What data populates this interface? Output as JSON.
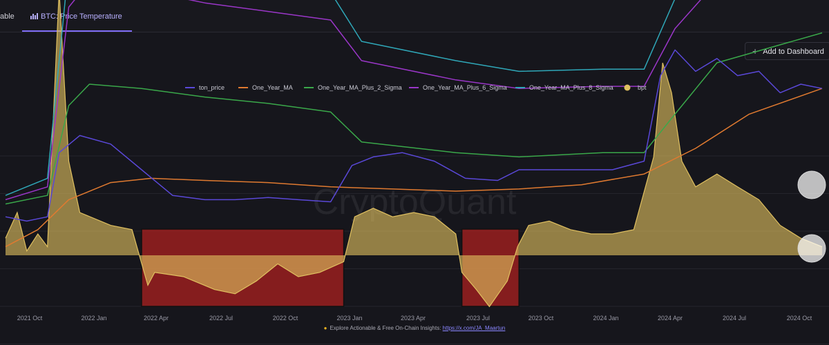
{
  "tabs": [
    {
      "label": "able"
    },
    {
      "label": "BTC: Price Temperature"
    }
  ],
  "add_dashboard_label": "Add to Dashboard",
  "watermark": "CryptoQuant",
  "footer": {
    "text": "Explore Actionable & Free On-Chain Insights:",
    "link": "https://x.com/JA_Maartun"
  },
  "chart_data": {
    "type": "line",
    "title": "",
    "xlabel": "",
    "ylabel": "",
    "x_ticks": [
      "2021 Oct",
      "2022 Jan",
      "2022 Apr",
      "2022 Jul",
      "2022 Oct",
      "2023 Jan",
      "2023 Apr",
      "2023 Jul",
      "2023 Oct",
      "2024 Jan",
      "2024 Apr",
      "2024 Jul",
      "2024 Oct"
    ],
    "x_range": [
      "2021-08-15",
      "2024-11-15"
    ],
    "legend_position": "top-center",
    "grid": "horizontal",
    "series": [
      {
        "name": "ton_price",
        "color": "#5a48d8",
        "dates": [
          "2021-08-15",
          "2021-09-15",
          "2021-10-15",
          "2021-11-01",
          "2021-12-01",
          "2022-01-15",
          "2022-03-01",
          "2022-04-15",
          "2022-06-01",
          "2022-07-15",
          "2022-09-01",
          "2022-10-15",
          "2022-12-01",
          "2023-01-01",
          "2023-02-01",
          "2023-03-15",
          "2023-05-01",
          "2023-06-15",
          "2023-08-01",
          "2023-09-01",
          "2023-10-15",
          "2023-12-01",
          "2024-01-15",
          "2024-03-01",
          "2024-03-25",
          "2024-04-15",
          "2024-05-15",
          "2024-06-15",
          "2024-07-15",
          "2024-08-15",
          "2024-09-15",
          "2024-10-15",
          "2024-11-15"
        ],
        "values": [
          0.9,
          0.8,
          0.9,
          2.4,
          2.8,
          2.6,
          2.0,
          1.4,
          1.3,
          1.3,
          1.35,
          1.3,
          1.25,
          2.1,
          2.3,
          2.4,
          2.2,
          1.8,
          1.75,
          2.0,
          2.0,
          2.0,
          2.0,
          2.2,
          4.2,
          4.8,
          4.3,
          4.6,
          4.2,
          4.3,
          3.8,
          4.0,
          3.9
        ]
      },
      {
        "name": "One_Year_MA",
        "color": "#e07a30",
        "dates": [
          "2021-08-15",
          "2021-10-01",
          "2021-11-15",
          "2022-01-15",
          "2022-03-15",
          "2022-06-01",
          "2022-09-01",
          "2022-12-01",
          "2023-03-01",
          "2023-06-01",
          "2023-09-01",
          "2023-12-01",
          "2024-03-01",
          "2024-05-15",
          "2024-08-01",
          "2024-11-15"
        ],
        "values": [
          0.2,
          0.6,
          1.3,
          1.7,
          1.8,
          1.75,
          1.7,
          1.6,
          1.55,
          1.5,
          1.55,
          1.65,
          1.9,
          2.5,
          3.3,
          3.9
        ]
      },
      {
        "name": "One_Year_MA_Plus_2_Sigma",
        "color": "#3aa84a",
        "dates": [
          "2021-08-15",
          "2021-10-15",
          "2021-11-15",
          "2021-12-15",
          "2022-03-01",
          "2022-06-01",
          "2022-09-01",
          "2022-12-01",
          "2023-01-15",
          "2023-06-01",
          "2023-09-01",
          "2024-01-01",
          "2024-03-01",
          "2024-04-15",
          "2024-06-15",
          "2024-11-15"
        ],
        "values": [
          1.2,
          1.4,
          3.5,
          4.0,
          3.9,
          3.7,
          3.55,
          3.35,
          2.65,
          2.4,
          2.3,
          2.4,
          2.4,
          3.3,
          4.5,
          5.2
        ]
      },
      {
        "name": "One_Year_MA_Plus_6_Sigma",
        "color": "#9a36c8",
        "dates": [
          "2021-08-15",
          "2021-10-15",
          "2021-11-15",
          "2021-12-15",
          "2022-03-01",
          "2022-06-01",
          "2022-09-01",
          "2022-12-01",
          "2023-01-15",
          "2023-06-01",
          "2023-09-01",
          "2024-01-01",
          "2024-03-01",
          "2024-04-15",
          "2024-06-15",
          "2024-08-15",
          "2024-11-15"
        ],
        "values": [
          1.3,
          1.6,
          5.8,
          6.4,
          6.2,
          5.9,
          5.7,
          5.5,
          4.55,
          4.1,
          3.9,
          3.95,
          3.95,
          5.3,
          6.4,
          7.0,
          7.1
        ]
      },
      {
        "name": "One_Year_MA_Plus_8_Sigma",
        "color": "#2fa7b8",
        "dates": [
          "2021-08-15",
          "2021-10-15",
          "2021-11-15",
          "2021-12-15",
          "2022-03-01",
          "2022-06-01",
          "2022-09-01",
          "2022-12-01",
          "2023-01-15",
          "2023-06-01",
          "2023-09-01",
          "2024-01-01",
          "2024-03-01",
          "2024-04-15",
          "2024-06-15",
          "2024-08-15",
          "2024-11-15"
        ],
        "values": [
          1.4,
          1.8,
          6.8,
          7.1,
          6.9,
          6.6,
          6.35,
          6.15,
          5.0,
          4.55,
          4.3,
          4.35,
          4.35,
          6.0,
          7.3,
          7.8,
          7.7
        ]
      },
      {
        "name": "bpt",
        "color": "#e0c060",
        "type": "area",
        "baseline": 0,
        "dates": [
          "2021-08-15",
          "2021-09-01",
          "2021-09-15",
          "2021-10-01",
          "2021-10-15",
          "2021-11-01",
          "2021-11-15",
          "2021-12-01",
          "2022-01-15",
          "2022-02-15",
          "2022-03-10",
          "2022-03-20",
          "2022-05-01",
          "2022-06-15",
          "2022-07-15",
          "2022-08-15",
          "2022-09-15",
          "2022-10-15",
          "2022-11-15",
          "2022-12-20",
          "2023-01-05",
          "2023-02-01",
          "2023-03-01",
          "2023-04-01",
          "2023-05-01",
          "2023-06-01",
          "2023-06-10",
          "2023-07-01",
          "2023-07-20",
          "2023-08-15",
          "2023-08-30",
          "2023-09-15",
          "2023-10-15",
          "2023-11-15",
          "2023-12-15",
          "2024-01-15",
          "2024-02-15",
          "2024-03-15",
          "2024-03-28",
          "2024-04-10",
          "2024-04-25",
          "2024-05-15",
          "2024-06-15",
          "2024-07-15",
          "2024-08-15",
          "2024-09-15",
          "2024-10-15",
          "2024-11-15"
        ],
        "values": [
          0.4,
          1.0,
          0.1,
          0.5,
          0.2,
          6.2,
          2.2,
          1.0,
          0.7,
          0.6,
          -0.7,
          -0.4,
          -0.5,
          -0.8,
          -0.9,
          -0.6,
          -0.2,
          -0.5,
          -0.4,
          -0.15,
          0.9,
          1.1,
          0.9,
          1.0,
          0.9,
          0.5,
          -0.4,
          -0.8,
          -1.2,
          -0.6,
          0.2,
          0.7,
          0.8,
          0.6,
          0.5,
          0.5,
          0.6,
          2.3,
          4.5,
          3.8,
          2.2,
          1.6,
          1.9,
          1.6,
          1.3,
          0.7,
          0.4,
          0.2
        ]
      }
    ],
    "highlights": [
      {
        "start": "2022-03-01",
        "end": "2022-12-20",
        "color": "#b02020"
      },
      {
        "start": "2023-06-10",
        "end": "2023-09-01",
        "color": "#b02020"
      }
    ]
  }
}
